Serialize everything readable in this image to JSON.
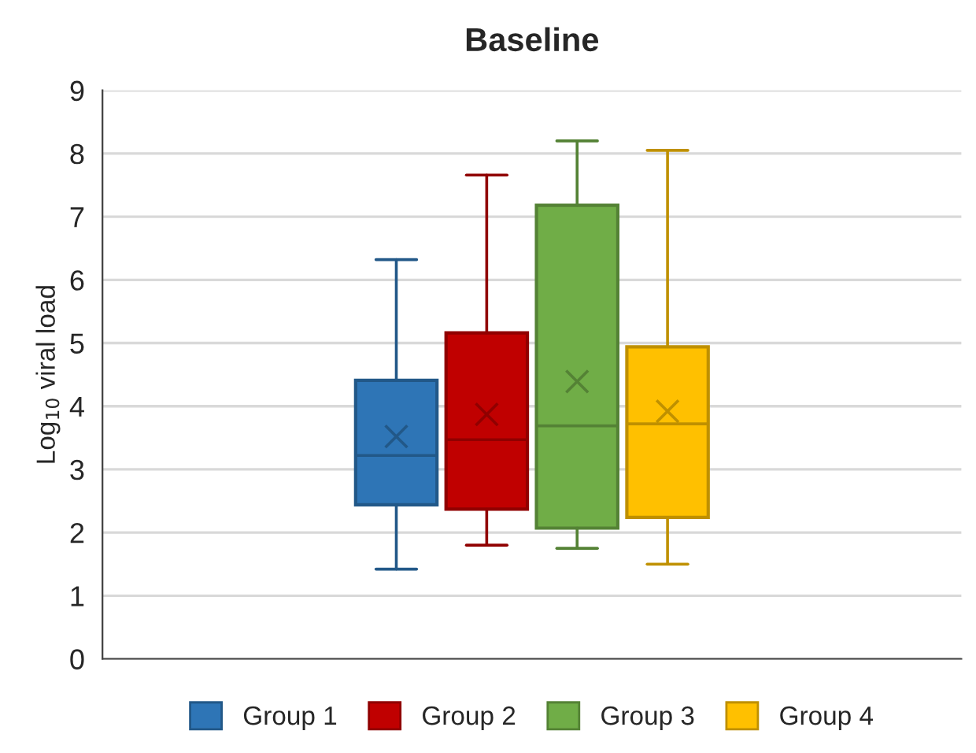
{
  "chart_data": {
    "type": "box",
    "title": "Baseline",
    "ylabel": "Log$_{10}$ viral load",
    "categories": [
      null
    ],
    "series": [
      {
        "name": "Group 1",
        "color": "#2e75b6",
        "boxes": [
          {
            "low": 1.42,
            "q1": 2.44,
            "median": 3.22,
            "q3": 4.41,
            "high": 6.32,
            "mean": 3.52
          }
        ]
      },
      {
        "name": "Group 2",
        "color": "#c00000",
        "boxes": [
          {
            "low": 1.8,
            "q1": 2.37,
            "median": 3.47,
            "q3": 5.16,
            "high": 7.66,
            "mean": 3.87
          }
        ]
      },
      {
        "name": "Group 3",
        "color": "#70ad47",
        "boxes": [
          {
            "low": 1.75,
            "q1": 2.07,
            "median": 3.69,
            "q3": 7.18,
            "high": 8.2,
            "mean": 4.39
          }
        ]
      },
      {
        "name": "Group 4",
        "color": "#ffc000",
        "boxes": [
          {
            "low": 1.5,
            "q1": 2.24,
            "median": 3.72,
            "q3": 4.94,
            "high": 8.05,
            "mean": 3.92
          }
        ]
      }
    ],
    "ylim": [
      0,
      9
    ],
    "yticks": [
      0,
      1,
      2,
      3,
      4,
      5,
      6,
      7,
      8,
      9
    ],
    "grid": "y",
    "legend": "bottom",
    "marker": "cross"
  }
}
